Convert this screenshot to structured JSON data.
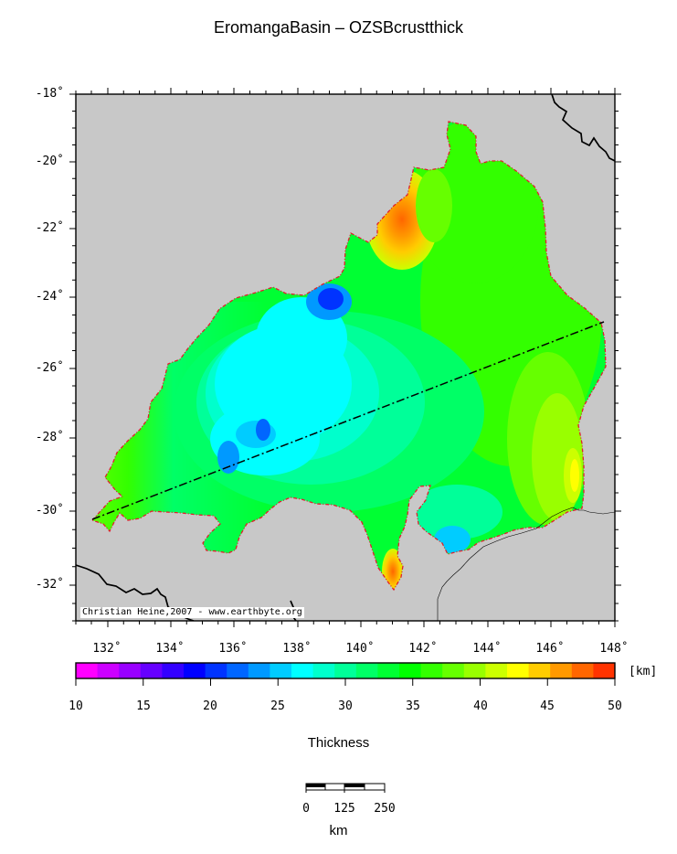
{
  "title": "EromangaBasin – OZSBcrustthick",
  "map": {
    "lat_labels": [
      "-18˚",
      "-20˚",
      "-22˚",
      "-24˚",
      "-26˚",
      "-28˚",
      "-30˚",
      "-32˚"
    ],
    "lon_labels": [
      "132˚",
      "134˚",
      "136˚",
      "138˚",
      "140˚",
      "142˚",
      "144˚",
      "146˚",
      "148˚"
    ],
    "credit": "Christian Heine,2007 - www.earthbyte.org",
    "land_color": "#c8c8c8",
    "outline_color": "#e0202c"
  },
  "colorbar": {
    "labels": [
      "10",
      "15",
      "20",
      "25",
      "30",
      "35",
      "40",
      "45",
      "50"
    ],
    "unit": "[km]",
    "title": "Thickness",
    "colors": [
      "#ff00ff",
      "#cc00ff",
      "#9900ff",
      "#6600ff",
      "#3300ff",
      "#0000ff",
      "#0033ff",
      "#0066ff",
      "#0099ff",
      "#00ccff",
      "#00ffff",
      "#00ffcc",
      "#00ff99",
      "#00ff66",
      "#00ff33",
      "#00ff00",
      "#33ff00",
      "#66ff00",
      "#99ff00",
      "#ccff00",
      "#ffff00",
      "#ffcc00",
      "#ff9900",
      "#ff6600",
      "#ff3300"
    ]
  },
  "scalebar": {
    "labels": [
      "0",
      "125",
      "250"
    ],
    "unit": "km"
  }
}
